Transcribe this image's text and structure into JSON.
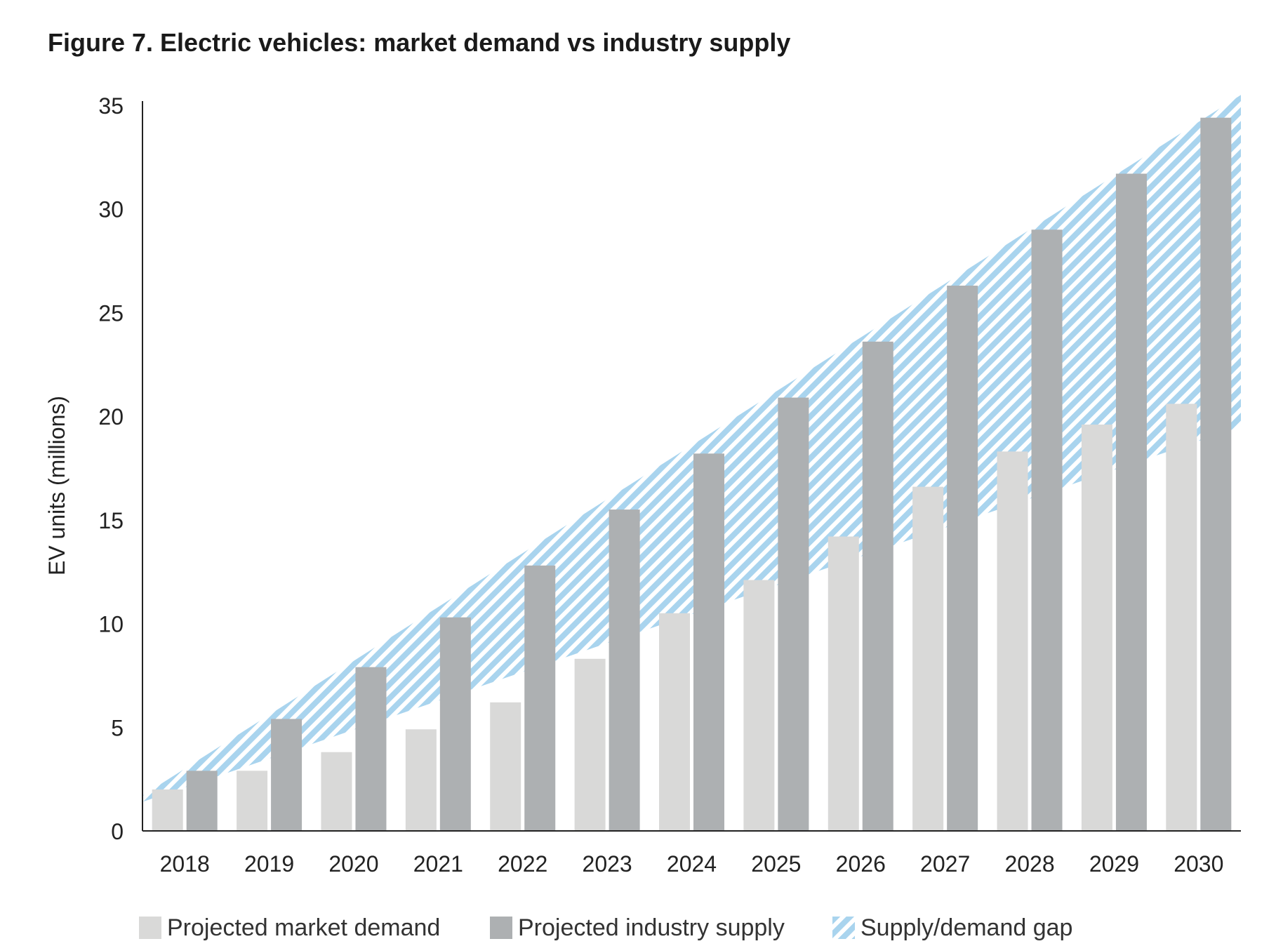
{
  "chart_data": {
    "type": "bar",
    "title": "Figure 7. Electric vehicles: market demand vs industry supply",
    "xlabel": "",
    "ylabel": "EV units (millions)",
    "ylim": [
      0,
      35
    ],
    "yticks": [
      0,
      5,
      10,
      15,
      20,
      25,
      30,
      35
    ],
    "categories": [
      "2018",
      "2019",
      "2020",
      "2021",
      "2022",
      "2023",
      "2024",
      "2025",
      "2026",
      "2027",
      "2028",
      "2029",
      "2030"
    ],
    "series": [
      {
        "name": "Projected market demand",
        "color": "#d9d9d8",
        "values": [
          2.0,
          2.9,
          3.8,
          4.9,
          6.2,
          8.3,
          10.5,
          12.1,
          14.2,
          16.6,
          18.3,
          19.6,
          20.6
        ]
      },
      {
        "name": "Projected industry supply",
        "color": "#adb0b2",
        "values": [
          2.9,
          5.4,
          7.9,
          10.3,
          12.8,
          15.5,
          18.2,
          20.9,
          23.6,
          26.3,
          29.0,
          31.7,
          34.4
        ]
      }
    ],
    "gap_band": {
      "name": "Supply/demand gap",
      "color": "#a9d4ee",
      "lower_start": 1.4,
      "lower_end": 19.5,
      "upper_start": 1.7,
      "upper_end": 35.5
    },
    "legend_position": "bottom"
  },
  "legend": {
    "demand_label": "Projected market demand",
    "supply_label": "Projected industry supply",
    "gap_label": "Supply/demand gap"
  }
}
